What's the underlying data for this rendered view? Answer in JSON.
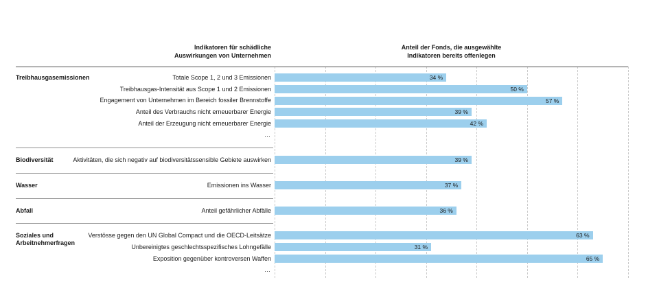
{
  "chart_data": {
    "type": "bar",
    "orientation": "horizontal",
    "value_unit": "%",
    "axis": {
      "xmin": 0,
      "xmax": 70,
      "gridlines": [
        0,
        10,
        20,
        30,
        40,
        50,
        60,
        70
      ],
      "gridline_style": "dashed",
      "tick_labels_visible": false
    },
    "legend": "none",
    "column_headers": {
      "left_line1": "Indikatoren für schädliche",
      "left_line2": "Auswirkungen von Unternehmen",
      "right_line1": "Anteil der Fonds, die ausgewählte",
      "right_line2": "Indikatoren bereits offenlegen"
    },
    "ellipsis": "…",
    "groups": [
      {
        "category": "Treibhausgasemissionen",
        "truncated": true,
        "rows": [
          {
            "label": "Totale Scope 1, 2 und 3 Emissionen",
            "value": 34,
            "pct_label": "34 %"
          },
          {
            "label": "Treibhausgas-Intensität aus Scope 1 und 2 Emissionen",
            "value": 50,
            "pct_label": "50 %"
          },
          {
            "label": "Engagement von Unternehmen im Bereich fossiler Brennstoffe",
            "value": 57,
            "pct_label": "57 %"
          },
          {
            "label": "Anteil des Verbrauchs nicht erneuerbarer Energie",
            "value": 39,
            "pct_label": "39 %"
          },
          {
            "label": "Anteil der Erzeugung nicht erneuerbarer Energie",
            "value": 42,
            "pct_label": "42 %"
          }
        ]
      },
      {
        "category": "Biodiversität",
        "truncated": false,
        "rows": [
          {
            "label": "Aktivitäten, die sich negativ auf biodiversitätssensible Gebiete auswirken",
            "value": 39,
            "pct_label": "39 %"
          }
        ]
      },
      {
        "category": "Wasser",
        "truncated": false,
        "rows": [
          {
            "label": "Emissionen ins Wasser",
            "value": 37,
            "pct_label": "37 %"
          }
        ]
      },
      {
        "category": "Abfall",
        "truncated": false,
        "rows": [
          {
            "label": "Anteil gefährlicher Abfälle",
            "value": 36,
            "pct_label": "36 %"
          }
        ]
      },
      {
        "category": "Soziales und Arbeitnehmerfragen",
        "truncated": true,
        "rows": [
          {
            "label": "Verstösse gegen den UN Global Compact und die OECD-Leitsätze",
            "value": 63,
            "pct_label": "63 %"
          },
          {
            "label": "Unbereinigtes geschlechtsspezifisches Lohngefälle",
            "value": 31,
            "pct_label": "31 %"
          },
          {
            "label": "Exposition gegenüber kontroversen Waffen",
            "value": 65,
            "pct_label": "65 %"
          }
        ]
      }
    ],
    "colors": {
      "bar": "#9CCFED",
      "grid": "#C9C9C9",
      "separator": "#8F8F8F",
      "top_rule": "#4C4C4C",
      "text": "#1A1A1A"
    }
  }
}
